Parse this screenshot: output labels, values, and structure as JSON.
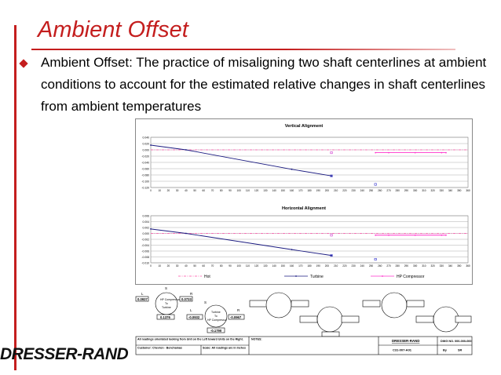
{
  "slide": {
    "title": "Ambient Offset",
    "body": "Ambient Offset: The practice of misaligning two shaft centerlines at ambient conditions to account for the estimated relative changes in shaft centerlines from ambient temperatures",
    "logo": "DRESSER-RAND"
  },
  "chart_data": [
    {
      "type": "line",
      "title": "Vertical Alignment",
      "xlim": [
        0,
        360
      ],
      "ylim": [
        -0.12,
        0.04
      ],
      "x_ticks": [
        "0",
        "10",
        "20",
        "30",
        "40",
        "50",
        "60",
        "70",
        "80",
        "90",
        "100",
        "110",
        "120",
        "130",
        "140",
        "150",
        "160",
        "170",
        "180",
        "190",
        "200",
        "210",
        "220",
        "230",
        "240",
        "250",
        "260",
        "270",
        "280",
        "290",
        "300",
        "310",
        "320",
        "330",
        "340",
        "350",
        "360"
      ],
      "y_ticks": [
        "0.040",
        "0.020",
        "0.000",
        "-0.020",
        "-0.040",
        "-0.060",
        "-0.080",
        "-0.100",
        "-0.120"
      ],
      "series": [
        {
          "name": "Hot",
          "color": "#ff4fa8",
          "style": "dash-dot",
          "x": [
            0,
            360
          ],
          "y": [
            0,
            0
          ]
        },
        {
          "name": "Turbine",
          "color": "#1a1a80",
          "style": "solid",
          "x": [
            0,
            40,
            160,
            205
          ],
          "y": [
            0.015,
            0,
            -0.062,
            -0.083
          ]
        },
        {
          "name": "HP Compressor",
          "color": "#ff33cc",
          "style": "solid",
          "x": [
            255,
            270,
            300,
            330,
            335
          ],
          "y": [
            -0.009,
            -0.009,
            -0.009,
            -0.009,
            -0.009
          ]
        }
      ],
      "points": [
        {
          "x": 205,
          "y": -0.083,
          "color": "#3333cc"
        },
        {
          "x": 205,
          "y": -0.009,
          "color": "#cc33cc"
        },
        {
          "x": 255,
          "y": -0.11,
          "color": "#3333cc"
        }
      ]
    },
    {
      "type": "line",
      "title": "Horizontal Alignment",
      "xlim": [
        0,
        360
      ],
      "ylim": [
        -0.01,
        0.006
      ],
      "x_ticks": [
        "0",
        "10",
        "20",
        "30",
        "40",
        "50",
        "60",
        "70",
        "80",
        "90",
        "100",
        "110",
        "120",
        "130",
        "140",
        "150",
        "160",
        "170",
        "180",
        "190",
        "200",
        "210",
        "220",
        "230",
        "240",
        "250",
        "260",
        "270",
        "280",
        "290",
        "300",
        "310",
        "320",
        "330",
        "340",
        "350",
        "360"
      ],
      "y_ticks": [
        "0.006",
        "0.004",
        "0.002",
        "0.000",
        "-0.002",
        "-0.004",
        "-0.006",
        "-0.008",
        "-0.010"
      ],
      "series": [
        {
          "name": "Hot",
          "color": "#ff4fa8",
          "style": "dash-dot",
          "x": [
            0,
            360
          ],
          "y": [
            0,
            0
          ]
        },
        {
          "name": "Turbine",
          "color": "#1a1a80",
          "style": "solid",
          "x": [
            0,
            40,
            160,
            205
          ],
          "y": [
            0.0015,
            0,
            -0.0055,
            -0.0075
          ]
        },
        {
          "name": "HP Compressor",
          "color": "#ff33cc",
          "style": "solid",
          "x": [
            255,
            270,
            300,
            330,
            335
          ],
          "y": [
            -0.0006,
            -0.0006,
            -0.0006,
            -0.0006,
            -0.0006
          ]
        }
      ],
      "points": [
        {
          "x": 205,
          "y": -0.0075,
          "color": "#3333cc"
        },
        {
          "x": 205,
          "y": -0.0006,
          "color": "#cc33cc"
        },
        {
          "x": 255,
          "y": -0.0088,
          "color": "#3333cc"
        }
      ]
    }
  ],
  "legend": [
    "Hot",
    "Turbine",
    "HP Compressor"
  ],
  "drawing": {
    "s1": "S",
    "l1": "L",
    "r1": "R",
    "s2": "S",
    "v_l": "0.0937",
    "v_r": "0.0733",
    "c1_line1": "HP Compressor",
    "c1_line2": "To",
    "c1_line3": "Turbine",
    "v_b1": "0.1376",
    "v_b2": "-0.0932",
    "l2": "L",
    "r2": "R",
    "c2_line1": "Turbine",
    "c2_line2": "To",
    "c2_line3": "HP Compressor",
    "v_c2": "-0.0967",
    "v_c2b": "-0.1790"
  },
  "title_block": {
    "note1": "All readings orientated looking from Unit on the Left toward Units on the Right.",
    "customer": "Customer: Chevron - Benchamas",
    "scale": "Scale: All readings are in Inches",
    "notes": "NOTES:",
    "company": "DRESSER-RAND",
    "dwg_label": "DWG NO.",
    "dwg_no": "000-000-000",
    "part": "C31-007-A01",
    "by_label": "By",
    "by": "SR"
  }
}
